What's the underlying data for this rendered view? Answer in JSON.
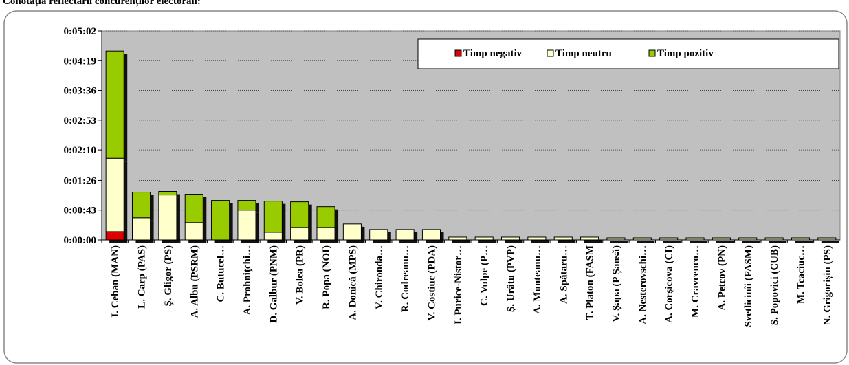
{
  "chart_data": {
    "type": "bar",
    "stacked": true,
    "title": "Conotația reflectării concurenților electorali:",
    "categories": [
      "I. Ceban (MAN)",
      "L. Carp (PAS)",
      "Ș. Gligor (PS)",
      "A. Albu (PSRM)",
      "C. Butucel…",
      "A. Prohnițchi…",
      "D. Galbur (PNM)",
      "V. Bolea (PR)",
      "R. Popa (NOI)",
      "A. Donică (MPS)",
      "V. Chironda…",
      "R. Codreanu…",
      "V. Costiuc (PDA)",
      "I. Purice-Nistor…",
      "C. Vulpe (P…",
      "Ș. Urâtu (PVP)",
      "A. Munteanu…",
      "A. Spătaru…",
      "T. Platon (FASM",
      "V. Șapa (P Șansă)",
      "A. Nesterovschi…",
      "A. Corșicova (CI)",
      "M. Cravcenco…",
      "A. Petcov (PN)",
      "Svetlicinîi (FASM)",
      "S. Popovici (CUB)",
      "M. Tcaciuc…",
      "N. Grigorișin (PS)"
    ],
    "series": [
      {
        "name": "Timp negativ",
        "color": "#e00000",
        "values": [
          12,
          0,
          0,
          0,
          0,
          0,
          0,
          0,
          0,
          0,
          0,
          0,
          0,
          0,
          0,
          0,
          0,
          0,
          0,
          0,
          0,
          0,
          0,
          0,
          0,
          0,
          0,
          0
        ]
      },
      {
        "name": "Timp neutru",
        "color": "#ffffcc",
        "values": [
          106,
          32,
          65,
          25,
          0,
          43,
          11,
          18,
          18,
          23,
          15,
          15,
          15,
          4,
          4,
          4,
          4,
          4,
          4,
          3,
          3,
          3,
          3,
          3,
          3,
          3,
          3,
          3
        ]
      },
      {
        "name": "Timp pozitiv",
        "color": "#99cc00",
        "values": [
          155,
          37,
          5,
          41,
          57,
          14,
          45,
          37,
          30,
          0,
          0,
          0,
          0,
          0,
          0,
          0,
          0,
          0,
          0,
          0,
          0,
          0,
          0,
          0,
          0,
          0,
          0,
          0
        ]
      }
    ],
    "ylim": [
      0,
      302
    ],
    "yticks": [
      {
        "value": 0,
        "label": "0:00:00"
      },
      {
        "value": 43,
        "label": "0:00:43"
      },
      {
        "value": 86,
        "label": "0:01:26"
      },
      {
        "value": 130,
        "label": "0:02:10"
      },
      {
        "value": 173,
        "label": "0:02:53"
      },
      {
        "value": 216,
        "label": "0:03:36"
      },
      {
        "value": 259,
        "label": "0:04:19"
      },
      {
        "value": 302,
        "label": "0:05:02"
      }
    ],
    "grid": true,
    "legend": "top-right"
  }
}
